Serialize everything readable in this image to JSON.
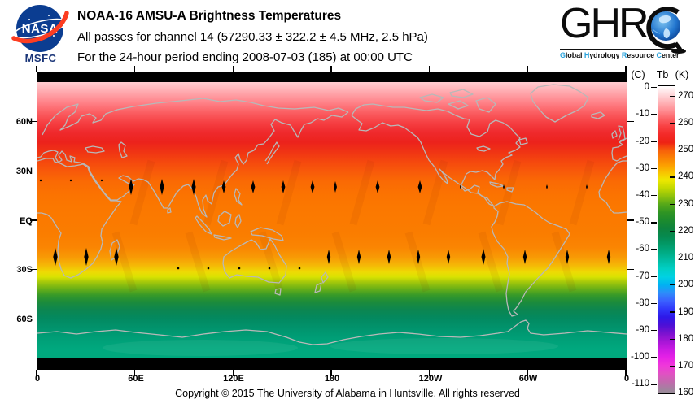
{
  "header": {
    "nasa": {
      "wordmark": "NASA",
      "caption": "MSFC",
      "blue": "#0b3d91",
      "red": "#fc3d21",
      "caption_color": "#1a3578"
    },
    "title": "NOAA-16 AMSU-A Brightness Temperatures",
    "subtitle": "All passes for channel 14 (57290.33 ± 322.2 ± 4.5 MHz, 2.5 hPa)",
    "period": "For the 24-hour period ending 2008-07-03 (185) at 00:00 UTC",
    "ghrc": {
      "letters": "GHR",
      "highlight_color": "#2aa3dc",
      "caption_segments": [
        {
          "text": "G",
          "highlight": true
        },
        {
          "text": "lobal ",
          "highlight": false
        },
        {
          "text": "H",
          "highlight": true
        },
        {
          "text": "ydrology ",
          "highlight": false
        },
        {
          "text": "R",
          "highlight": true
        },
        {
          "text": "esource ",
          "highlight": false
        },
        {
          "text": "C",
          "highlight": true
        },
        {
          "text": "enter",
          "highlight": false
        }
      ]
    }
  },
  "map": {
    "lat_labels": [
      "60N",
      "30N",
      "EQ",
      "30S",
      "60S"
    ],
    "lon_labels": [
      "0",
      "60E",
      "120E",
      "180",
      "120W",
      "60W",
      "0"
    ]
  },
  "colorbar": {
    "header_c": "(C)",
    "header_tb": "Tb",
    "header_k": "(K)",
    "c_labels": [
      "0",
      "-10",
      "-20",
      "-30",
      "-40",
      "-50",
      "-60",
      "-70",
      "-80",
      "-90",
      "-100",
      "-110"
    ],
    "k_labels": [
      "270",
      "260",
      "250",
      "240",
      "230",
      "220",
      "210",
      "200",
      "190",
      "180",
      "170",
      "160"
    ]
  },
  "footer": {
    "copyright": "Copyright © 2015 The University of Alabama in Huntsville.  All rights reserved"
  },
  "chart_data": {
    "type": "heatmap",
    "title": "NOAA-16 AMSU-A Brightness Temperatures",
    "subtitle": "All passes for channel 14 (57290.33 ± 322.2 ± 4.5 MHz, 2.5 hPa)",
    "period": "For the 24-hour period ending 2008-07-03 (185) at 00:00 UTC",
    "projection": "equirectangular",
    "x_axis": {
      "ticks": [
        "0",
        "60E",
        "120E",
        "180",
        "120W",
        "60W",
        "0"
      ],
      "range_deg_east": [
        0,
        360
      ]
    },
    "y_axis": {
      "ticks": [
        "60N",
        "30N",
        "EQ",
        "30S",
        "60S"
      ],
      "range_deg_lat": [
        90,
        -90
      ]
    },
    "coastline_color": "#b8b8b8",
    "no_data_color": "#000000",
    "polar_gap_deg": 84,
    "colorbar": {
      "title_left": "(C)",
      "title_right": "Tb (K)",
      "ticks_c": [
        0,
        -10,
        -20,
        -30,
        -40,
        -50,
        -60,
        -70,
        -80,
        -90,
        -100,
        -110
      ],
      "ticks_k": [
        270,
        260,
        250,
        240,
        230,
        220,
        210,
        200,
        190,
        180,
        170,
        160
      ],
      "range_k": [
        159.6,
        274
      ],
      "stops": [
        {
          "k": 274,
          "color": "#ffffff"
        },
        {
          "k": 271,
          "color": "#ffdadd"
        },
        {
          "k": 268,
          "color": "#ffb4b8"
        },
        {
          "k": 265,
          "color": "#ff8e93"
        },
        {
          "k": 262,
          "color": "#fc6468"
        },
        {
          "k": 259,
          "color": "#f84042"
        },
        {
          "k": 256,
          "color": "#f32a28"
        },
        {
          "k": 253,
          "color": "#ee2214"
        },
        {
          "k": 250,
          "color": "#f7610a"
        },
        {
          "k": 247,
          "color": "#fa8303"
        },
        {
          "k": 244,
          "color": "#fca500"
        },
        {
          "k": 241,
          "color": "#f6cf00"
        },
        {
          "k": 239,
          "color": "#eee800"
        },
        {
          "k": 236,
          "color": "#c2d800"
        },
        {
          "k": 233,
          "color": "#8fc20c"
        },
        {
          "k": 230,
          "color": "#56a819"
        },
        {
          "k": 227,
          "color": "#2f9423"
        },
        {
          "k": 224,
          "color": "#1c8b2e"
        },
        {
          "k": 221,
          "color": "#0e833d"
        },
        {
          "k": 218,
          "color": "#068a50"
        },
        {
          "k": 215,
          "color": "#029a68"
        },
        {
          "k": 212,
          "color": "#00ac85"
        },
        {
          "k": 209,
          "color": "#00bda5"
        },
        {
          "k": 206,
          "color": "#00cfc5"
        },
        {
          "k": 203,
          "color": "#00d2e2"
        },
        {
          "k": 200,
          "color": "#00b2f2"
        },
        {
          "k": 197,
          "color": "#2e8cfa"
        },
        {
          "k": 194,
          "color": "#3a60ff"
        },
        {
          "k": 191,
          "color": "#3038fa"
        },
        {
          "k": 188,
          "color": "#2e18e8"
        },
        {
          "k": 185,
          "color": "#4c10d6"
        },
        {
          "k": 182,
          "color": "#7a12cf"
        },
        {
          "k": 179,
          "color": "#a515d6"
        },
        {
          "k": 176,
          "color": "#c91ae2"
        },
        {
          "k": 173,
          "color": "#e621e6"
        },
        {
          "k": 170,
          "color": "#ef38da"
        },
        {
          "k": 167,
          "color": "#e250c4"
        },
        {
          "k": 164,
          "color": "#c368ae"
        },
        {
          "k": 161,
          "color": "#a2839f"
        },
        {
          "k": 159.6,
          "color": "#958e95"
        }
      ]
    },
    "lat_color_stops": [
      {
        "lat": 90,
        "color": "#ffd8db"
      },
      {
        "lat": 84,
        "color": "#ffc9cd"
      },
      {
        "lat": 78,
        "color": "#ffa6ab"
      },
      {
        "lat": 72,
        "color": "#ff8187"
      },
      {
        "lat": 66,
        "color": "#fb5e62"
      },
      {
        "lat": 60,
        "color": "#f64043"
      },
      {
        "lat": 54,
        "color": "#ef2a2d"
      },
      {
        "lat": 48,
        "color": "#ec221c"
      },
      {
        "lat": 42,
        "color": "#f03414"
      },
      {
        "lat": 36,
        "color": "#f5480e"
      },
      {
        "lat": 30,
        "color": "#f85a0a"
      },
      {
        "lat": 24,
        "color": "#fa6a04"
      },
      {
        "lat": 16,
        "color": "#fb7301"
      },
      {
        "lat": 8,
        "color": "#fb7800"
      },
      {
        "lat": 0,
        "color": "#fb7a00"
      },
      {
        "lat": -8,
        "color": "#fa7d00"
      },
      {
        "lat": -16,
        "color": "#fa8502"
      },
      {
        "lat": -22,
        "color": "#f89a05"
      },
      {
        "lat": -27,
        "color": "#f5b806"
      },
      {
        "lat": -31,
        "color": "#eeda04"
      },
      {
        "lat": -34,
        "color": "#d8e202"
      },
      {
        "lat": -37,
        "color": "#a6c90a"
      },
      {
        "lat": -41,
        "color": "#6cb116"
      },
      {
        "lat": -45,
        "color": "#389a28"
      },
      {
        "lat": -49,
        "color": "#1d8c3a"
      },
      {
        "lat": -54,
        "color": "#0c8650"
      },
      {
        "lat": -59,
        "color": "#03895f"
      },
      {
        "lat": -65,
        "color": "#01936c"
      },
      {
        "lat": -71,
        "color": "#009e76"
      },
      {
        "lat": -78,
        "color": "#00a87e"
      },
      {
        "lat": -90,
        "color": "#00a87b"
      }
    ],
    "zonal_mean_tb_k": {
      "lat": [
        84,
        80,
        70,
        60,
        50,
        40,
        30,
        20,
        10,
        0,
        -10,
        -20,
        -25,
        -30,
        -35,
        -40,
        -45,
        -50,
        -55,
        -60,
        -65,
        -70,
        -75,
        -80,
        -84
      ],
      "tb": [
        268,
        267,
        263,
        260,
        257,
        255,
        253,
        251,
        250,
        249.5,
        250,
        249.5,
        248,
        243,
        238,
        233,
        230,
        227,
        224,
        221,
        218,
        215,
        213,
        212,
        212
      ]
    }
  }
}
